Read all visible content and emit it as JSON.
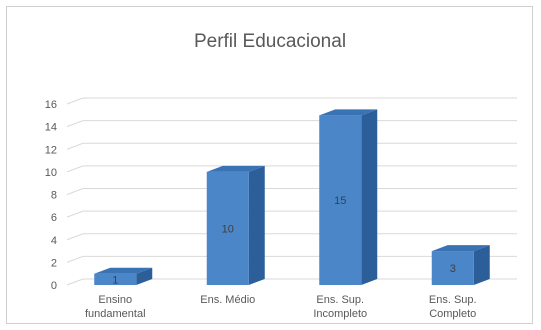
{
  "chart_data": {
    "type": "bar",
    "title": "Perfil Educacional",
    "categories": [
      [
        "Ensino",
        "fundamental"
      ],
      [
        "Ens. Médio"
      ],
      [
        "Ens. Sup.",
        "Incompleto"
      ],
      [
        "Ens. Sup.",
        "Completo"
      ]
    ],
    "values": [
      1,
      10,
      15,
      3
    ],
    "data_labels": [
      "1",
      "10",
      "15",
      "3"
    ],
    "ylim": [
      0,
      16
    ],
    "yticks": [
      "0",
      "2",
      "4",
      "6",
      "8",
      "10",
      "12",
      "14",
      "16"
    ],
    "grid": true,
    "legend": "none",
    "style": "3d-column",
    "colors": {
      "front": "#4a86c8",
      "top": "#3a73b4",
      "side": "#2c5f9a",
      "grid": "#d9d9d9",
      "text": "#595959"
    }
  }
}
